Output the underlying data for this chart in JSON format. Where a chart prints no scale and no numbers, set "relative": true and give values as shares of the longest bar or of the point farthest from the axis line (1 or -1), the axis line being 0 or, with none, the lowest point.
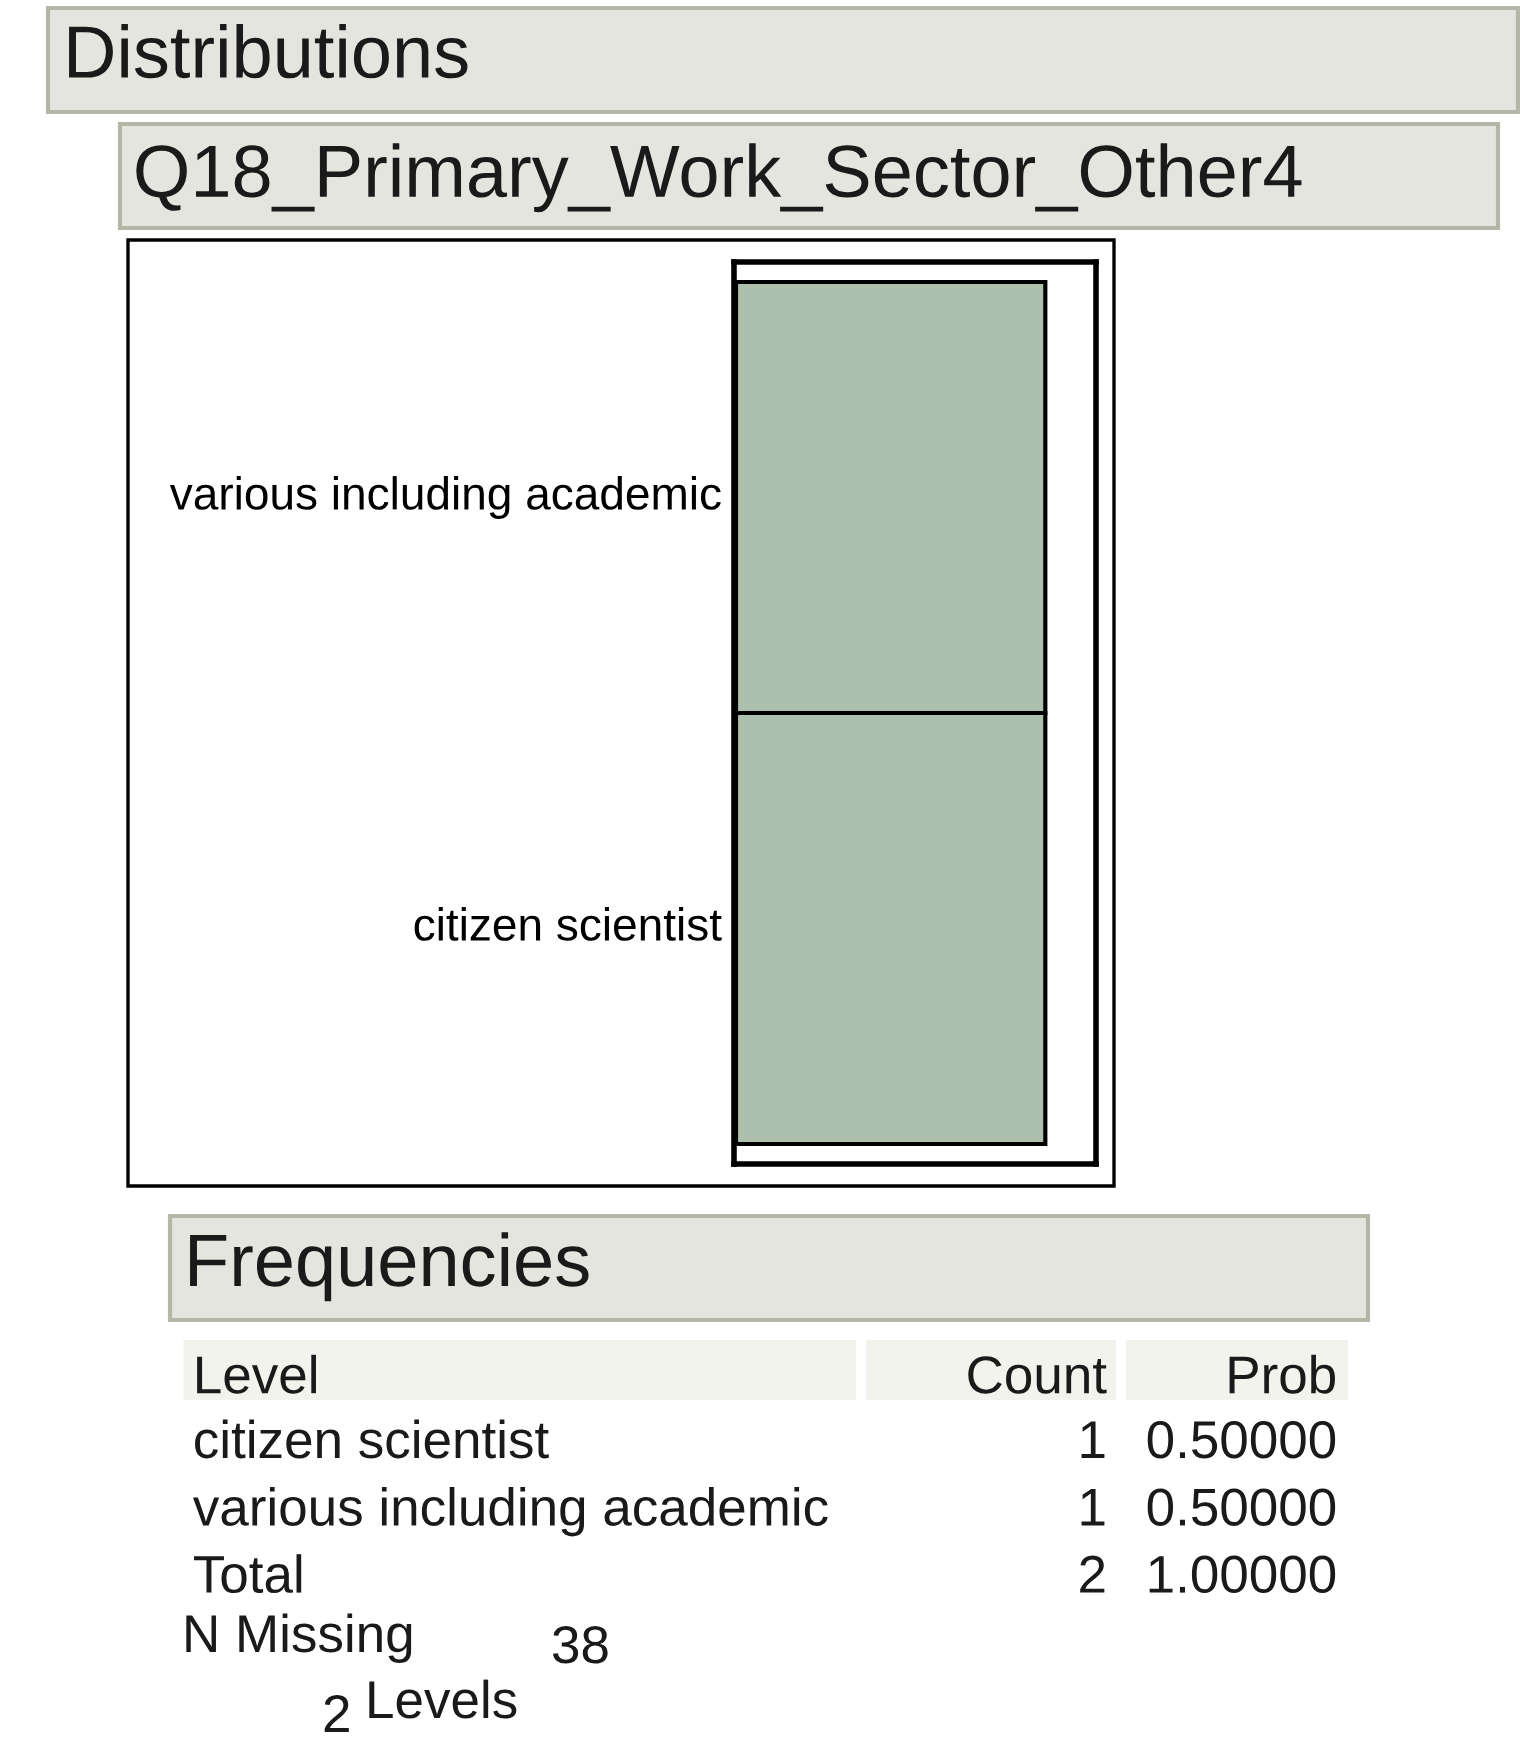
{
  "chart_data": [
    {
      "type": "bar",
      "title": "Distributions",
      "subtitle": "Q18_Primary_Work_Sector_Other4",
      "stacked": true,
      "relative": true,
      "categories": [
        null
      ],
      "series": [
        {
          "name": "citizen scientist",
          "color": "#adbfad",
          "values": [
            0.5
          ]
        },
        {
          "name": "various including academic",
          "color": "#adbfad",
          "values": [
            0.5
          ]
        }
      ]
    },
    {
      "type": "other",
      "title": "Frequencies",
      "annotations": [
        "Level",
        "Count",
        "Prob",
        "citizen scientist",
        "1",
        "0.50000",
        "various including academic",
        "1",
        "0.50000",
        "Total",
        "2",
        "1.00000",
        "N Missing",
        "38",
        "2",
        "Levels"
      ]
    }
  ]
}
